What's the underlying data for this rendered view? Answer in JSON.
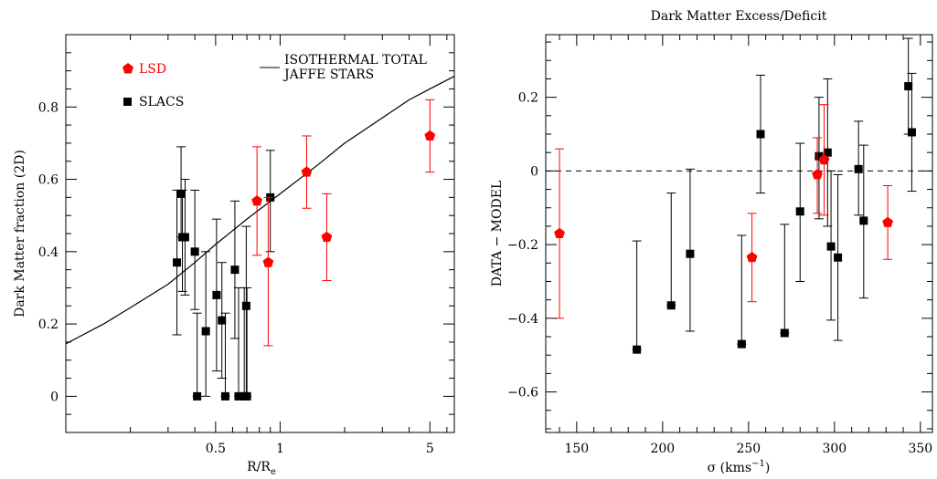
{
  "chart_data": [
    {
      "type": "scatter",
      "title": "",
      "xlabel": "R/R",
      "xlabel_sub": "e",
      "ylabel": "Dark Matter fraction (2D)",
      "xscale": "log",
      "xlim": [
        0.1,
        6.5
      ],
      "ylim": [
        -0.1,
        1.0
      ],
      "x_ticks": [
        0.5,
        1,
        5
      ],
      "x_tick_labels": [
        "0.5",
        "1",
        "5"
      ],
      "y_ticks": [
        0,
        0.2,
        0.4,
        0.6,
        0.8
      ],
      "y_tick_labels": [
        "0",
        "0.2",
        "0.4",
        "0.6",
        "0.8"
      ],
      "legend": {
        "placement": "top",
        "entries": [
          "LSD",
          "SLACS"
        ],
        "line_label_1": "ISOTHERMAL TOTAL",
        "line_label_2": "JAFFE STARS"
      },
      "colors": {
        "LSD": "#ff0000",
        "SLACS": "#000000"
      },
      "series": [
        {
          "name": "SLACS",
          "marker": "square",
          "points": [
            {
              "x": 0.33,
              "y": 0.37,
              "lo": 0.17,
              "hi": 0.57
            },
            {
              "x": 0.345,
              "y": 0.56,
              "lo": 0.44,
              "hi": 0.69
            },
            {
              "x": 0.35,
              "y": 0.44,
              "lo": 0.29,
              "hi": 0.57
            },
            {
              "x": 0.36,
              "y": 0.44,
              "lo": 0.28,
              "hi": 0.6
            },
            {
              "x": 0.4,
              "y": 0.4,
              "lo": 0.24,
              "hi": 0.57
            },
            {
              "x": 0.41,
              "y": 0.0,
              "lo": 0.0,
              "hi": 0.23
            },
            {
              "x": 0.45,
              "y": 0.18,
              "lo": 0.0,
              "hi": 0.4
            },
            {
              "x": 0.505,
              "y": 0.28,
              "lo": 0.07,
              "hi": 0.49
            },
            {
              "x": 0.535,
              "y": 0.21,
              "lo": 0.05,
              "hi": 0.37
            },
            {
              "x": 0.555,
              "y": 0.0,
              "lo": 0.0,
              "hi": 0.23
            },
            {
              "x": 0.615,
              "y": 0.35,
              "lo": 0.16,
              "hi": 0.54
            },
            {
              "x": 0.64,
              "y": 0.0,
              "lo": 0.0,
              "hi": 0.3
            },
            {
              "x": 0.68,
              "y": 0.0,
              "lo": 0.0,
              "hi": 0.3
            },
            {
              "x": 0.695,
              "y": 0.25,
              "lo": 0.0,
              "hi": 0.47
            },
            {
              "x": 0.7,
              "y": 0.0,
              "lo": 0.0,
              "hi": 0.3
            },
            {
              "x": 0.9,
              "y": 0.55,
              "lo": 0.4,
              "hi": 0.68
            }
          ]
        },
        {
          "name": "LSD",
          "marker": "pentagon",
          "points": [
            {
              "x": 0.78,
              "y": 0.54,
              "lo": 0.39,
              "hi": 0.69
            },
            {
              "x": 0.88,
              "y": 0.37,
              "lo": 0.14,
              "hi": 0.55
            },
            {
              "x": 1.33,
              "y": 0.62,
              "lo": 0.52,
              "hi": 0.72
            },
            {
              "x": 1.65,
              "y": 0.44,
              "lo": 0.32,
              "hi": 0.56
            },
            {
              "x": 5.0,
              "y": 0.72,
              "lo": 0.62,
              "hi": 0.82
            }
          ]
        }
      ],
      "model_curve": {
        "x": [
          0.1,
          0.15,
          0.2,
          0.3,
          0.4,
          0.5,
          0.7,
          1.0,
          1.5,
          2.0,
          3.0,
          4.0,
          5.0,
          6.5
        ],
        "y": [
          0.145,
          0.2,
          0.245,
          0.31,
          0.37,
          0.42,
          0.49,
          0.56,
          0.64,
          0.7,
          0.77,
          0.82,
          0.85,
          0.885
        ]
      }
    },
    {
      "type": "scatter",
      "title": "Dark Matter Excess/Deficit",
      "xlabel": "σ (kms",
      "xlabel_sup": "−1",
      "xlabel_end": ")",
      "ylabel": "DATA − MODEL",
      "xlim": [
        132,
        357
      ],
      "ylim": [
        -0.71,
        0.37
      ],
      "x_ticks": [
        150,
        200,
        250,
        300,
        350
      ],
      "x_tick_labels": [
        "150",
        "200",
        "250",
        "300",
        "350"
      ],
      "y_ticks": [
        -0.6,
        -0.4,
        -0.2,
        0,
        0.2
      ],
      "y_tick_labels": [
        "−0.6",
        "−0.4",
        "−0.2",
        "0",
        "0.2"
      ],
      "reference_line": 0,
      "colors": {
        "LSD": "#ff0000",
        "SLACS": "#000000"
      },
      "series": [
        {
          "name": "SLACS",
          "marker": "square",
          "points": [
            {
              "x": 185,
              "y": -0.485,
              "lo": -0.485,
              "hi": -0.19
            },
            {
              "x": 205,
              "y": -0.365,
              "lo": -0.365,
              "hi": -0.06
            },
            {
              "x": 216,
              "y": -0.225,
              "lo": -0.435,
              "hi": 0.005
            },
            {
              "x": 246,
              "y": -0.47,
              "lo": -0.47,
              "hi": -0.175
            },
            {
              "x": 257,
              "y": 0.1,
              "lo": -0.06,
              "hi": 0.26
            },
            {
              "x": 271,
              "y": -0.44,
              "lo": -0.44,
              "hi": -0.145
            },
            {
              "x": 280,
              "y": -0.11,
              "lo": -0.3,
              "hi": 0.075
            },
            {
              "x": 291,
              "y": 0.04,
              "lo": -0.13,
              "hi": 0.2
            },
            {
              "x": 296,
              "y": 0.05,
              "lo": -0.15,
              "hi": 0.25
            },
            {
              "x": 298,
              "y": -0.205,
              "lo": -0.405,
              "hi": 0.0
            },
            {
              "x": 302,
              "y": -0.235,
              "lo": -0.46,
              "hi": -0.01
            },
            {
              "x": 314,
              "y": 0.005,
              "lo": -0.12,
              "hi": 0.135
            },
            {
              "x": 317,
              "y": -0.135,
              "lo": -0.345,
              "hi": 0.07
            },
            {
              "x": 343,
              "y": 0.23,
              "lo": 0.1,
              "hi": 0.36
            },
            {
              "x": 345,
              "y": 0.105,
              "lo": -0.055,
              "hi": 0.265
            }
          ]
        },
        {
          "name": "LSD",
          "marker": "pentagon",
          "points": [
            {
              "x": 140,
              "y": -0.17,
              "lo": -0.4,
              "hi": 0.06
            },
            {
              "x": 252,
              "y": -0.235,
              "lo": -0.355,
              "hi": -0.115
            },
            {
              "x": 290,
              "y": -0.01,
              "lo": -0.115,
              "hi": 0.09
            },
            {
              "x": 294,
              "y": 0.03,
              "lo": -0.12,
              "hi": 0.18
            },
            {
              "x": 331,
              "y": -0.14,
              "lo": -0.24,
              "hi": -0.04
            }
          ]
        }
      ]
    }
  ]
}
